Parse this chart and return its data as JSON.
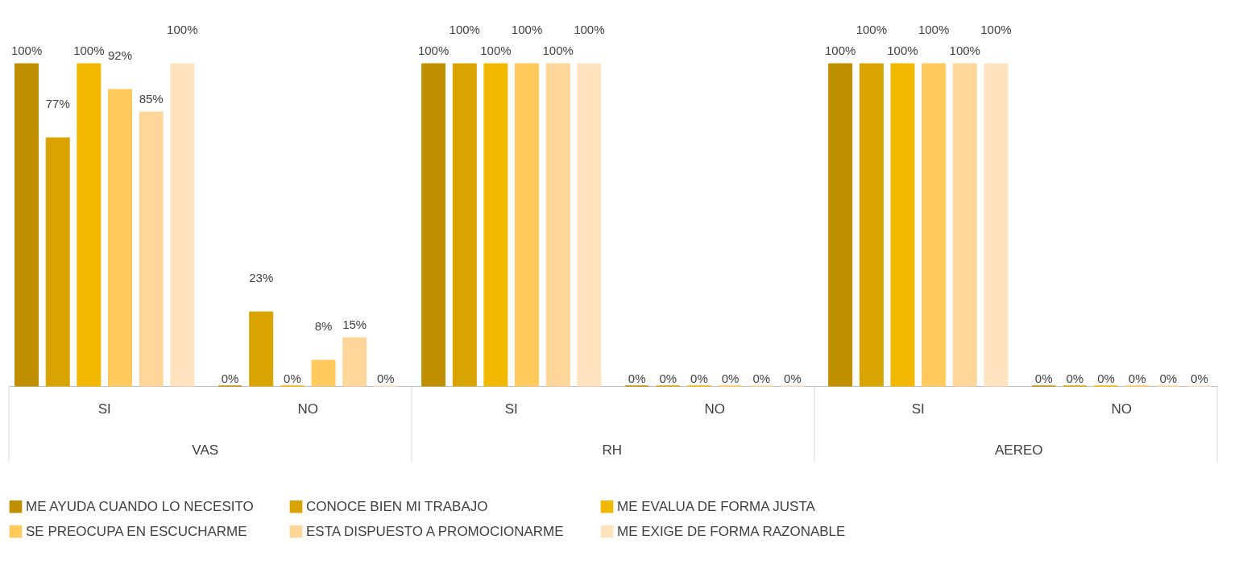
{
  "chart_data": {
    "type": "bar",
    "categories": [
      "SI",
      "NO",
      "SI",
      "NO",
      "SI",
      "NO"
    ],
    "series": [
      {
        "name": "ME AYUDA CUANDO LO NECESITO",
        "color": "#bf8f00",
        "values": [
          100,
          0,
          100,
          0,
          100,
          0
        ],
        "value_labels": [
          "100%",
          "0%",
          "100%",
          "0%",
          "100%",
          "0%"
        ]
      },
      {
        "name": "CONOCE BIEN MI TRABAJO",
        "color": "#d9a300",
        "values": [
          77,
          23,
          100,
          0,
          100,
          0
        ],
        "value_labels": [
          "77%",
          "23%",
          "100%",
          "0%",
          "100%",
          "0%"
        ]
      },
      {
        "name": "ME EVALUA DE FORMA JUSTA",
        "color": "#f2b800",
        "values": [
          100,
          0,
          100,
          0,
          100,
          0
        ],
        "value_labels": [
          "100%",
          "0%",
          "100%",
          "0%",
          "100%",
          "0%"
        ]
      },
      {
        "name": "SE PREOCUPA EN ESCUCHARME",
        "color": "#ffc95c",
        "values": [
          92,
          8,
          100,
          0,
          100,
          0
        ],
        "value_labels": [
          "92%",
          "8%",
          "100%",
          "0%",
          "100%",
          "0%"
        ]
      },
      {
        "name": "ESTA DISPUESTO A PROMOCIONARME",
        "color": "#ffd699",
        "values": [
          85,
          15,
          100,
          0,
          100,
          0
        ],
        "value_labels": [
          "85%",
          "15%",
          "100%",
          "0%",
          "100%",
          "0%"
        ]
      },
      {
        "name": "ME EXIGE DE FORMA RAZONABLE",
        "color": "#ffe3bf",
        "values": [
          100,
          0,
          100,
          0,
          100,
          0
        ],
        "value_labels": [
          "100%",
          "0%",
          "100%",
          "0%",
          "100%",
          "0%"
        ]
      }
    ],
    "annotations": [
      "VAS",
      "RH",
      "AEREO"
    ],
    "legend": "bottom",
    "grid": false
  }
}
